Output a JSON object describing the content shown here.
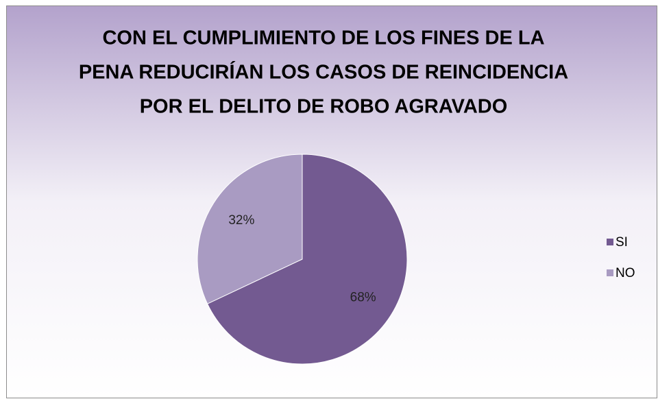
{
  "chart_data": {
    "type": "pie",
    "title": [
      "CON EL CUMPLIMIENTO DE LOS FINES DE LA",
      "PENA REDUCIRÍAN LOS CASOS DE REINCIDENCIA",
      "POR EL DELITO DE ROBO AGRAVADO"
    ],
    "categories": [
      "SI",
      "NO"
    ],
    "values": [
      68,
      32
    ],
    "value_labels": [
      "68%",
      "32%"
    ],
    "colors": [
      "#735a91",
      "#a99bc2"
    ],
    "legend": "right"
  }
}
